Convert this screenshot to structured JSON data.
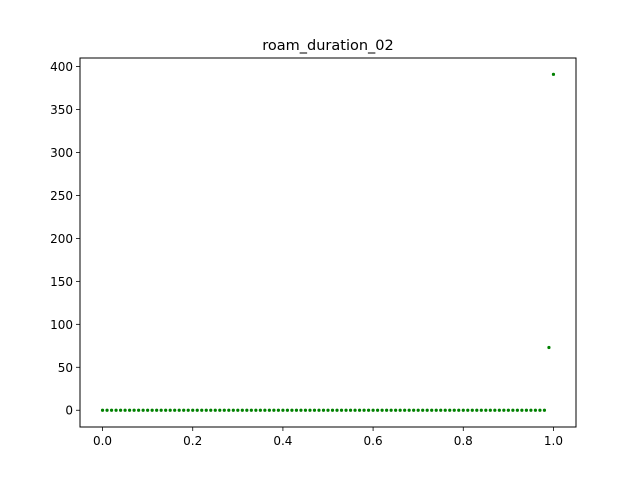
{
  "chart_data": {
    "type": "scatter",
    "title": "roam_duration_02",
    "xlabel": "",
    "ylabel": "",
    "xlim": [
      -0.05,
      1.05
    ],
    "ylim": [
      -19.5,
      410
    ],
    "xticks": [
      0.0,
      0.2,
      0.4,
      0.6,
      0.8,
      1.0
    ],
    "xtick_labels": [
      "0.0",
      "0.2",
      "0.4",
      "0.6",
      "0.8",
      "1.0"
    ],
    "yticks": [
      0,
      50,
      100,
      150,
      200,
      250,
      300,
      350,
      400
    ],
    "ytick_labels": [
      "0",
      "50",
      "100",
      "150",
      "200",
      "250",
      "300",
      "350",
      "400"
    ],
    "grid": false,
    "legend": false,
    "marker_color": "#008000",
    "series": [
      {
        "x_start": 0.0,
        "x_step": 0.01,
        "y": [
          0,
          0,
          0,
          0,
          0,
          0,
          0,
          0,
          0,
          0,
          0,
          0,
          0,
          0,
          0,
          0,
          0,
          0,
          0,
          0,
          0,
          0,
          0,
          0,
          0,
          0,
          0,
          0,
          0,
          0,
          0,
          0,
          0,
          0,
          0,
          0,
          0,
          0,
          0,
          0,
          0,
          0,
          0,
          0,
          0,
          0,
          0,
          0,
          0,
          0,
          0,
          0,
          0,
          0,
          0,
          0,
          0,
          0,
          0,
          0,
          0,
          0,
          0,
          0,
          0,
          0,
          0,
          0,
          0,
          0,
          0,
          0,
          0,
          0,
          0,
          0,
          0,
          0,
          0,
          0,
          0,
          0,
          0,
          0,
          0,
          0,
          0,
          0,
          0,
          0,
          0,
          0,
          0,
          0,
          0,
          0,
          0,
          0,
          0,
          73,
          391
        ]
      }
    ]
  }
}
